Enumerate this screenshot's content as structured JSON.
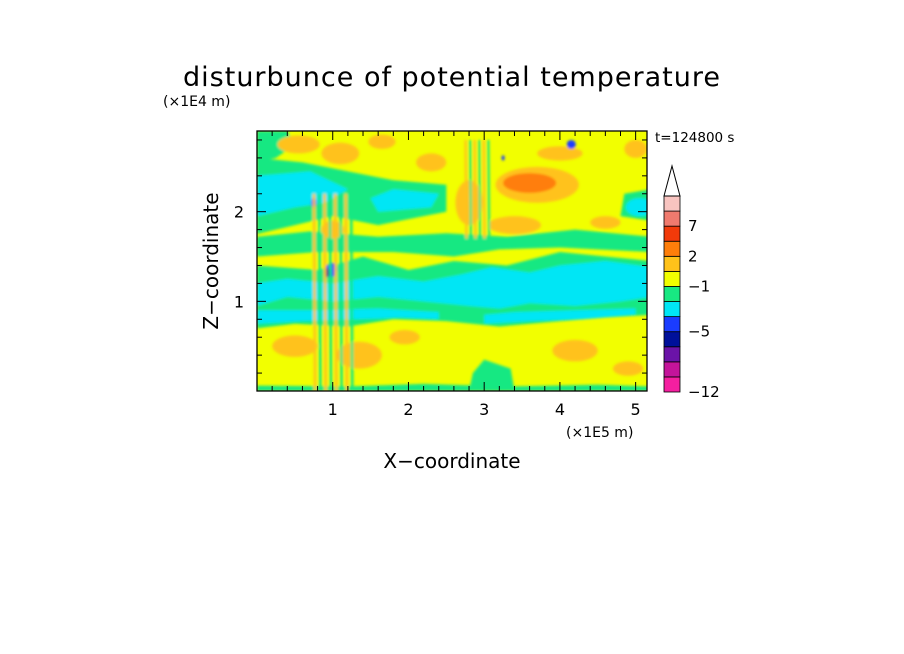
{
  "chart_data": {
    "type": "heatmap",
    "title": "disturbunce of potential temperature",
    "xlabel": "X−coordinate",
    "ylabel": "Z−coordinate",
    "x_unit": "(×1E5 m)",
    "y_unit": "(×1E4 m)",
    "time_label": "t=124800 s",
    "xlim": [
      0,
      5.15
    ],
    "ylim": [
      0,
      2.9
    ],
    "x_ticks": [
      1,
      2,
      3,
      4,
      5
    ],
    "y_ticks": [
      1,
      2
    ],
    "colorbar": {
      "labels": [
        {
          "value": 7,
          "text": "7"
        },
        {
          "value": 2,
          "text": "2"
        },
        {
          "value": -1,
          "text": "−1"
        },
        {
          "value": -5,
          "text": "−5"
        },
        {
          "value": -12,
          "text": "−12"
        }
      ],
      "bins": [
        {
          "color": "#f51fa0"
        },
        {
          "color": "#c4149a"
        },
        {
          "color": "#6b13a8"
        },
        {
          "color": "#00109a"
        },
        {
          "color": "#1a3cff"
        },
        {
          "color": "#00e6f5"
        },
        {
          "color": "#18e882"
        },
        {
          "color": "#f2ff00"
        },
        {
          "color": "#ffc21a"
        },
        {
          "color": "#ff7e0a"
        },
        {
          "color": "#f23a0a"
        },
        {
          "color": "#f07a6e"
        },
        {
          "color": "#f8c4c0"
        }
      ],
      "extend_top": true
    }
  }
}
